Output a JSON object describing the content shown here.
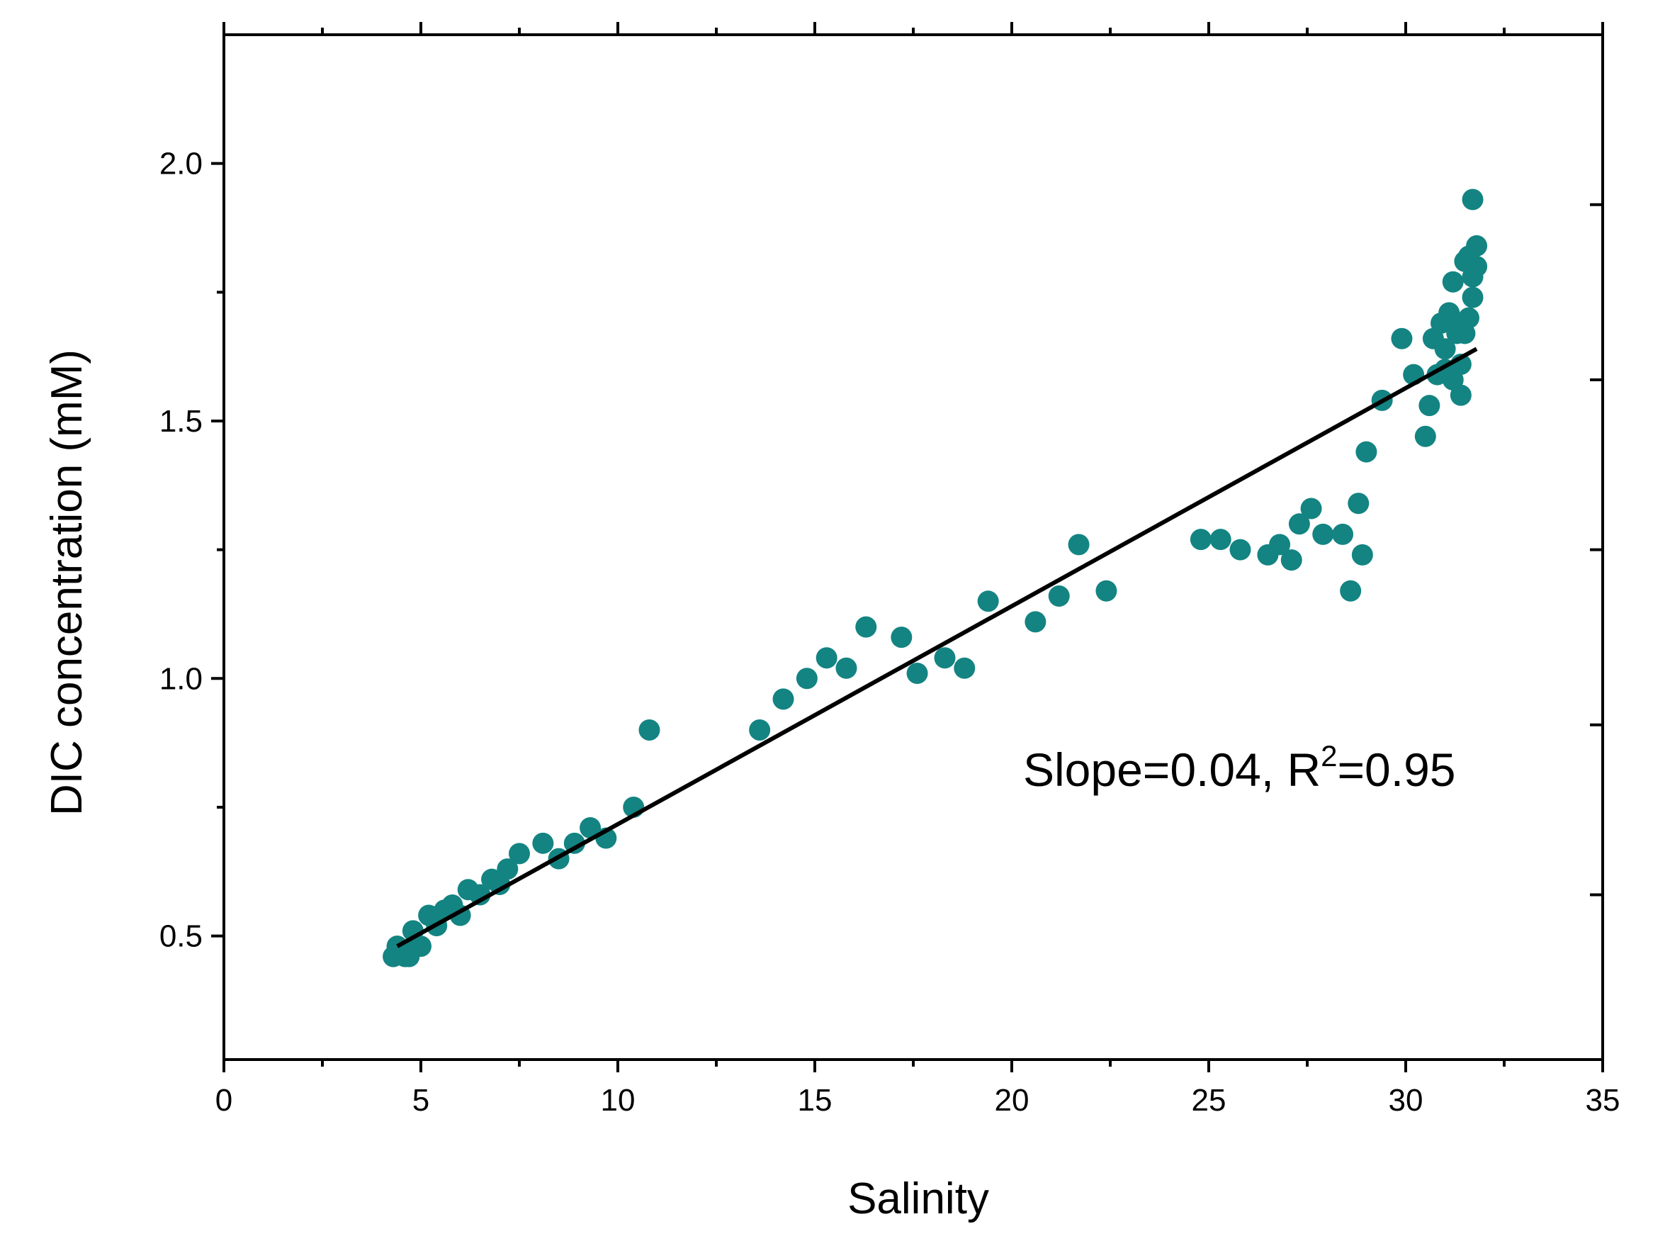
{
  "chart_data": {
    "type": "scatter",
    "title": "",
    "xlabel": "Salinity",
    "ylabel": "DIC concentration (mM)",
    "xlim": [
      0,
      35
    ],
    "ylim": [
      0.26,
      2.25
    ],
    "x_ticks": [
      0,
      5,
      10,
      15,
      20,
      25,
      30,
      35
    ],
    "x_tick_labels": [
      "0",
      "5",
      "10",
      "15",
      "20",
      "25",
      "30",
      "35"
    ],
    "y_ticks": [
      0.5,
      1.0,
      1.5,
      2.0
    ],
    "y_tick_labels": [
      "0.5",
      "1.0",
      "1.5",
      "2.0"
    ],
    "y_minor_ticks": [
      0.75,
      1.25,
      1.75
    ],
    "right_axis_ticks": [
      0.58,
      0.91,
      1.25,
      1.58,
      1.92
    ],
    "grid": false,
    "colors": {
      "points": "#138482",
      "fit_line": "#000000",
      "axis": "#000000"
    },
    "annotation": {
      "prefix": "Slope=0.04, R",
      "superscript": "2",
      "suffix": "=0.95",
      "position": "middle-right"
    },
    "fit_line": {
      "x": [
        4.4,
        31.8
      ],
      "y": [
        0.48,
        1.64
      ]
    },
    "series": [
      {
        "name": "DIC",
        "x": [
          4.3,
          4.4,
          4.5,
          4.6,
          4.4,
          4.7,
          4.8,
          4.9,
          5.0,
          5.2,
          5.4,
          5.6,
          5.8,
          6.0,
          6.2,
          6.5,
          6.8,
          7.0,
          7.2,
          7.5,
          8.1,
          8.5,
          8.9,
          9.3,
          9.7,
          10.4,
          10.8,
          13.6,
          14.2,
          14.8,
          15.3,
          15.8,
          16.3,
          17.2,
          17.6,
          18.3,
          18.8,
          19.4,
          20.6,
          21.2,
          21.7,
          22.4,
          24.8,
          25.3,
          25.8,
          26.5,
          26.8,
          27.1,
          27.3,
          27.6,
          27.9,
          28.4,
          28.6,
          28.8,
          28.9,
          29.0,
          29.4,
          29.9,
          30.2,
          30.5,
          30.6,
          30.7,
          30.8,
          30.9,
          31.0,
          31.0,
          31.1,
          31.2,
          31.2,
          31.3,
          31.3,
          31.4,
          31.4,
          31.5,
          31.5,
          31.6,
          31.6,
          31.7,
          31.7,
          31.8,
          31.8,
          31.7
        ],
        "y": [
          0.46,
          0.48,
          0.47,
          0.46,
          0.48,
          0.46,
          0.51,
          0.48,
          0.48,
          0.54,
          0.52,
          0.55,
          0.56,
          0.54,
          0.59,
          0.58,
          0.61,
          0.6,
          0.63,
          0.66,
          0.68,
          0.65,
          0.68,
          0.71,
          0.69,
          0.75,
          0.9,
          0.9,
          0.96,
          1.0,
          1.04,
          1.02,
          1.1,
          1.08,
          1.01,
          1.04,
          1.02,
          1.15,
          1.11,
          1.16,
          1.26,
          1.17,
          1.27,
          1.27,
          1.25,
          1.24,
          1.26,
          1.23,
          1.3,
          1.33,
          1.28,
          1.28,
          1.17,
          1.34,
          1.24,
          1.44,
          1.54,
          1.66,
          1.59,
          1.47,
          1.53,
          1.66,
          1.59,
          1.69,
          1.6,
          1.64,
          1.71,
          1.58,
          1.77,
          1.69,
          1.67,
          1.61,
          1.55,
          1.67,
          1.81,
          1.7,
          1.82,
          1.74,
          1.78,
          1.84,
          1.8,
          1.93
        ]
      }
    ]
  }
}
